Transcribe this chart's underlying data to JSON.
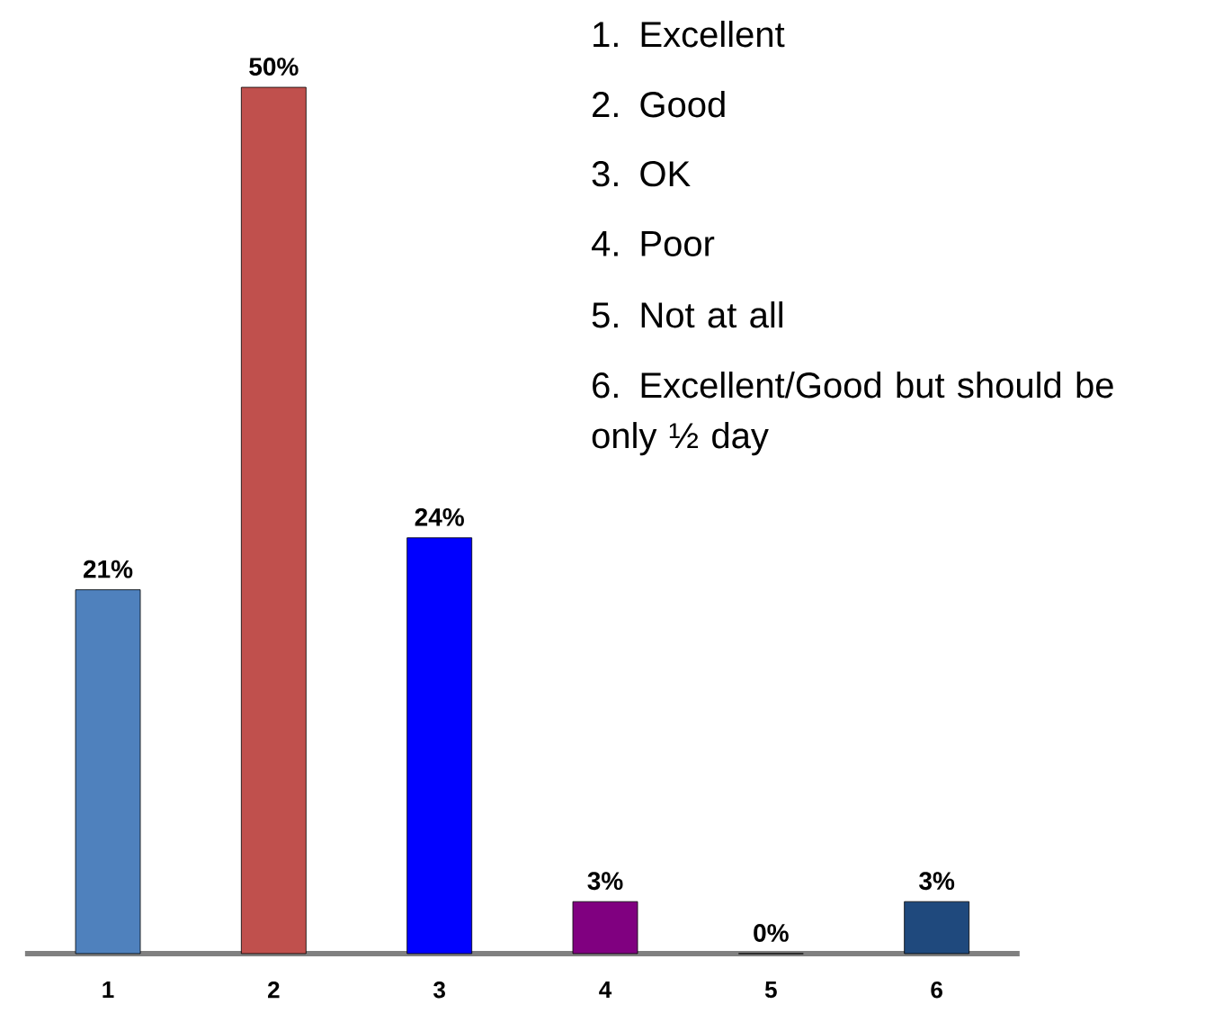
{
  "chart_data": {
    "type": "bar",
    "categories": [
      "1",
      "2",
      "3",
      "4",
      "5",
      "6"
    ],
    "values": [
      21,
      50,
      24,
      3,
      0,
      3
    ],
    "colors": [
      "#4f81bd",
      "#c0504d",
      "#0000ff",
      "#800080",
      "#d9d9d9",
      "#1f497d"
    ],
    "value_labels": [
      "21%",
      "50%",
      "24%",
      "3%",
      "0%",
      "3%"
    ],
    "annotations": [
      "1. Excellent",
      "2. Good",
      "3. OK",
      "4. Poor",
      "5. Not at all",
      "6. Excellent/Good but should be only ½ day"
    ]
  }
}
